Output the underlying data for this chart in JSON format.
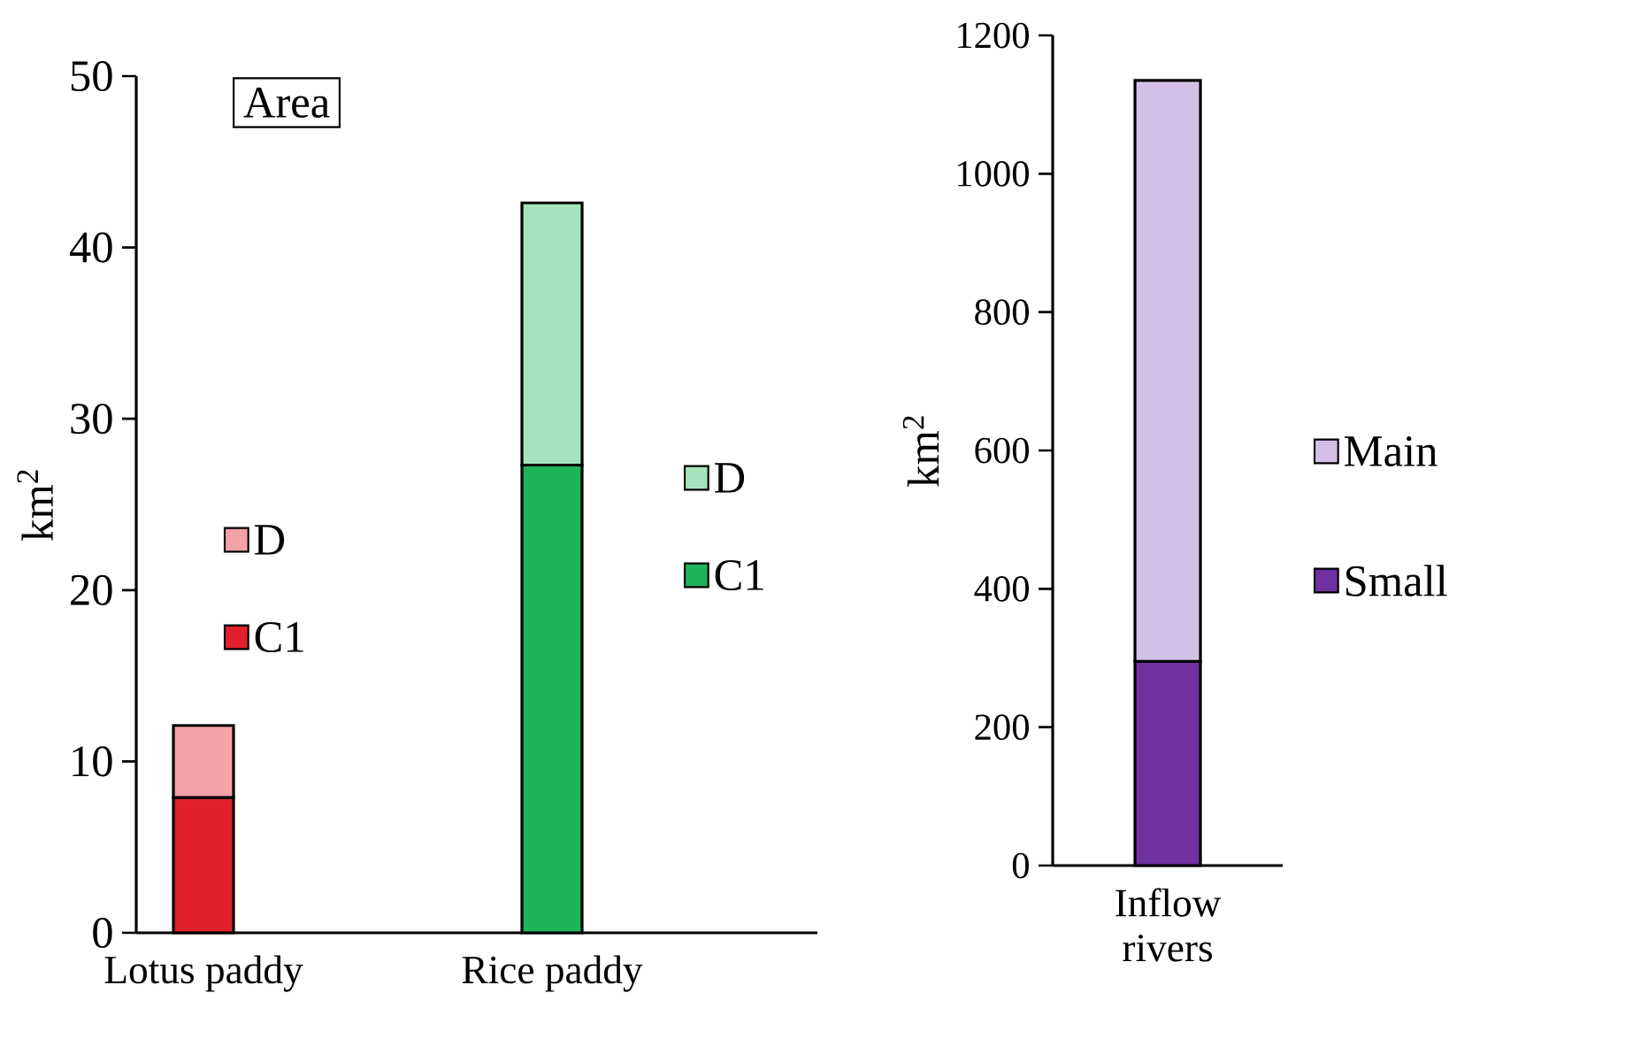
{
  "chart_data": [
    {
      "type": "bar",
      "stacked": true,
      "title": "Area",
      "ylabel": "km$^{2}$",
      "categories": [
        "Lotus paddy",
        "Rice paddy"
      ],
      "series": [
        {
          "name": "C1",
          "color": "#e0202a",
          "values": [
            7.9,
            null
          ]
        },
        {
          "name": "D",
          "color": "#f3a3a7",
          "values": [
            4.2,
            null
          ]
        },
        {
          "name": "C1",
          "color": "#1fb35a",
          "values": [
            null,
            27.3
          ]
        },
        {
          "name": "D",
          "color": "#a5e3bd",
          "values": [
            null,
            15.3
          ]
        }
      ],
      "ylim": [
        0,
        50
      ],
      "yticks": [
        0,
        10,
        20,
        30,
        40,
        50
      ],
      "legend": "right"
    },
    {
      "type": "bar",
      "stacked": true,
      "ylabel": "km$^{2}$",
      "categories": [
        "Inflow rivers"
      ],
      "series": [
        {
          "name": "Small",
          "color": "#7030a0",
          "values": [
            295
          ]
        },
        {
          "name": "Main",
          "color": "#d4bfe6",
          "values": [
            840
          ]
        }
      ],
      "ylim": [
        0,
        1200
      ],
      "yticks": [
        0,
        200,
        400,
        600,
        800,
        1000,
        1200
      ],
      "legend": "right"
    }
  ]
}
